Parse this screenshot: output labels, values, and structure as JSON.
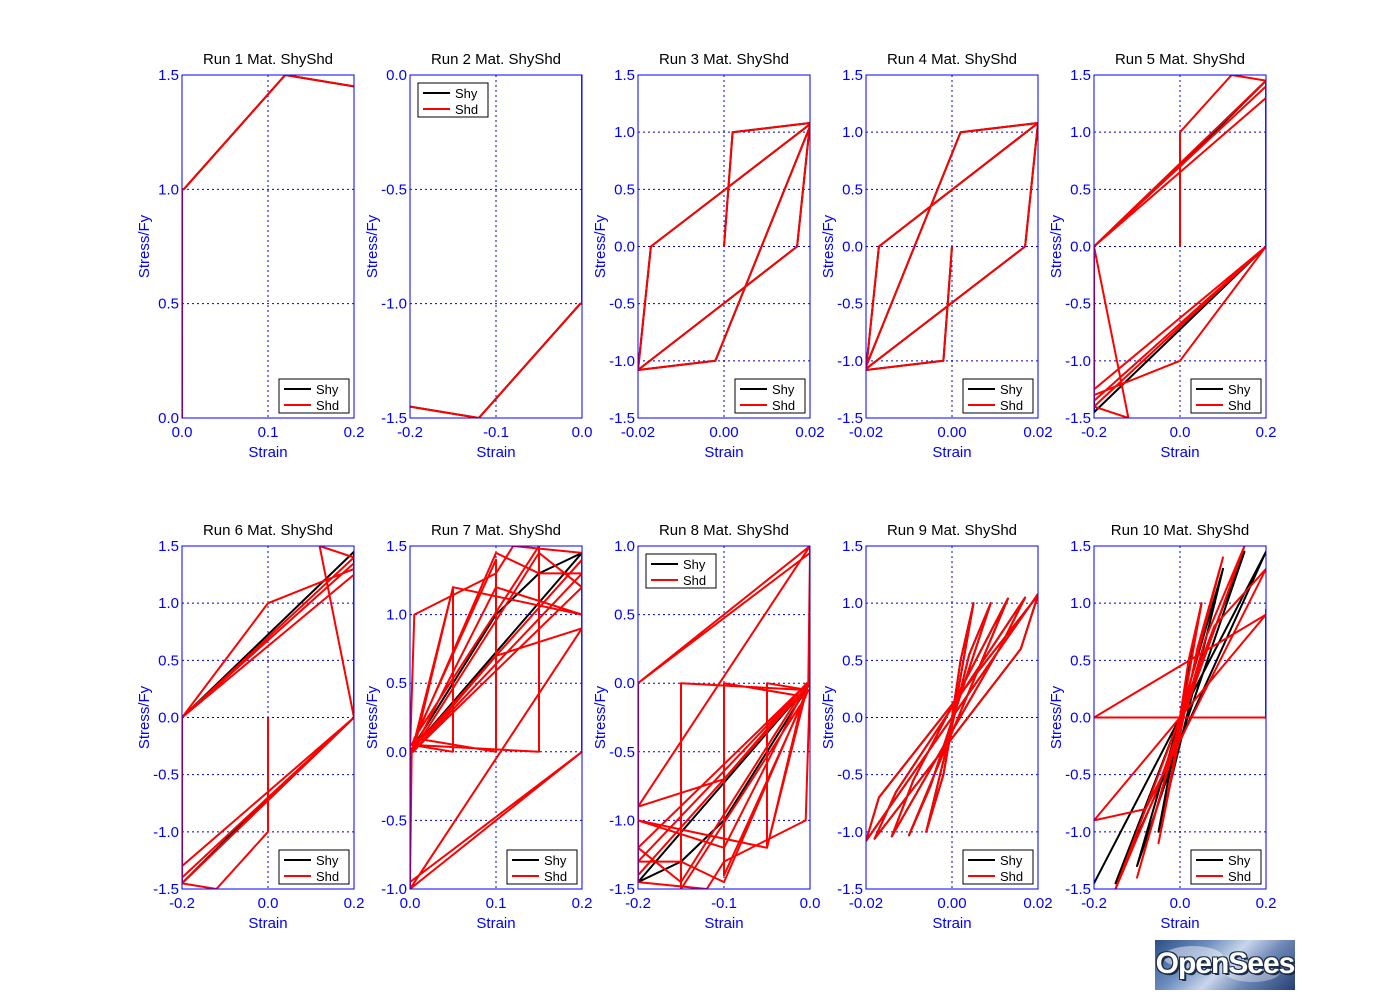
{
  "colors": {
    "axis": "#0000ff",
    "title": "#000000",
    "grid": "#0000cc",
    "shy": "#000000",
    "shd": "#ff0000"
  },
  "logo": {
    "text": "OpenSees"
  },
  "chart_data": [
    {
      "type": "line",
      "title": "Run 1   Mat. ShyShd",
      "xlabel": "Strain",
      "ylabel": "Stress/Fy",
      "xlim": [
        0,
        0.2
      ],
      "ylim": [
        0,
        1.5
      ],
      "xticks": [
        "0.0",
        "0.1",
        "0.2"
      ],
      "yticks": [
        "0.0",
        "0.5",
        "1.0",
        "1.5"
      ],
      "grid": true,
      "legend": {
        "position": "bottom-right",
        "entries": [
          "Shy",
          "Shd"
        ]
      },
      "series": [
        {
          "name": "Shy",
          "x": [
            0,
            0,
            0.002,
            0.12,
            0.2
          ],
          "y": [
            0,
            1.0,
            1.0,
            1.5,
            1.45
          ]
        },
        {
          "name": "Shd",
          "x": [
            0,
            0,
            0.002,
            0.12,
            0.2
          ],
          "y": [
            0,
            1.0,
            1.0,
            1.5,
            1.45
          ]
        }
      ]
    },
    {
      "type": "line",
      "title": "Run 2   Mat. ShyShd",
      "xlabel": "Strain",
      "ylabel": "Stress/Fy",
      "xlim": [
        -0.2,
        0
      ],
      "ylim": [
        -1.5,
        0
      ],
      "xticks": [
        "-0.2",
        "-0.1",
        "0.0"
      ],
      "yticks": [
        "-1.5",
        "-1.0",
        "-0.5",
        "0.0"
      ],
      "grid": true,
      "legend": {
        "position": "top-left",
        "entries": [
          "Shy",
          "Shd"
        ]
      },
      "series": [
        {
          "name": "Shy",
          "x": [
            0,
            0,
            -0.002,
            -0.12,
            -0.2
          ],
          "y": [
            0,
            -1.0,
            -1.0,
            -1.5,
            -1.45
          ]
        },
        {
          "name": "Shd",
          "x": [
            0,
            0,
            -0.002,
            -0.12,
            -0.2
          ],
          "y": [
            0,
            -1.0,
            -1.0,
            -1.5,
            -1.45
          ]
        }
      ]
    },
    {
      "type": "line",
      "title": "Run 3   Mat. ShyShd",
      "xlabel": "Strain",
      "ylabel": "Stress/Fy",
      "xlim": [
        -0.02,
        0.02
      ],
      "ylim": [
        -1.5,
        1.5
      ],
      "xticks": [
        "-0.02",
        "0.00",
        "0.02"
      ],
      "yticks": [
        "-1.5",
        "-1.0",
        "-0.5",
        "0.0",
        "0.5",
        "1.0",
        "1.5"
      ],
      "grid": true,
      "legend": {
        "position": "bottom-right",
        "entries": [
          "Shy",
          "Shd"
        ]
      },
      "series": [
        {
          "name": "Shy",
          "x": [
            0,
            0.002,
            0.02,
            0.017,
            -0.02,
            -0.017,
            0.02,
            0.02,
            -0.002,
            -0.02
          ],
          "y": [
            0,
            1.0,
            1.08,
            0,
            -1.08,
            0,
            1.07,
            1.05,
            -1.0,
            -1.08
          ]
        },
        {
          "name": "Shd",
          "x": [
            0,
            0.002,
            0.02,
            0.017,
            -0.02,
            -0.017,
            0.02,
            0.02,
            -0.002,
            -0.02
          ],
          "y": [
            0,
            1.0,
            1.08,
            0,
            -1.08,
            0,
            1.07,
            1.05,
            -1.0,
            -1.08
          ]
        }
      ]
    },
    {
      "type": "line",
      "title": "Run 4   Mat. ShyShd",
      "xlabel": "Strain",
      "ylabel": "Stress/Fy",
      "xlim": [
        -0.02,
        0.02
      ],
      "ylim": [
        -1.5,
        1.5
      ],
      "xticks": [
        "-0.02",
        "0.00",
        "0.02"
      ],
      "yticks": [
        "-1.5",
        "-1.0",
        "-0.5",
        "0.0",
        "0.5",
        "1.0",
        "1.5"
      ],
      "grid": true,
      "legend": {
        "position": "bottom-right",
        "entries": [
          "Shy",
          "Shd"
        ]
      },
      "series": [
        {
          "name": "Shy",
          "x": [
            0,
            -0.002,
            -0.02,
            -0.017,
            0.02,
            0.017,
            -0.02,
            -0.02,
            0.002,
            0.02
          ],
          "y": [
            0,
            -1.0,
            -1.08,
            0,
            1.08,
            0,
            -1.07,
            -1.05,
            1.0,
            1.08
          ]
        },
        {
          "name": "Shd",
          "x": [
            0,
            -0.002,
            -0.02,
            -0.017,
            0.02,
            0.017,
            -0.02,
            -0.02,
            0.002,
            0.02
          ],
          "y": [
            0,
            -1.0,
            -1.08,
            0,
            1.08,
            0,
            -1.07,
            -1.05,
            1.0,
            1.08
          ]
        }
      ]
    },
    {
      "type": "line",
      "title": "Run 5   Mat. ShyShd",
      "xlabel": "Strain",
      "ylabel": "Stress/Fy",
      "xlim": [
        -0.2,
        0.2
      ],
      "ylim": [
        -1.5,
        1.5
      ],
      "xticks": [
        "-0.2",
        "0.0",
        "0.2"
      ],
      "yticks": [
        "-1.5",
        "-1.0",
        "-0.5",
        "0.0",
        "0.5",
        "1.0",
        "1.5"
      ],
      "grid": true,
      "legend": {
        "position": "bottom-right",
        "entries": [
          "Shy",
          "Shd"
        ]
      },
      "series": [
        {
          "name": "Shy",
          "x": [
            0,
            0,
            0.2,
            0.2,
            -0.2,
            -0.2,
            0.2,
            0.2,
            -0.2
          ],
          "y": [
            0,
            0.7,
            1.45,
            0,
            -1.45,
            0,
            1.45,
            0,
            -1.45
          ]
        },
        {
          "name": "Shd",
          "x": [
            0,
            0,
            0.12,
            0.2,
            0.2,
            0,
            -0.2,
            -0.2,
            0.2,
            0.2,
            -0.2,
            -0.2,
            0.2,
            0.2,
            -0.2,
            -0.2,
            -0.12,
            -0.2,
            0,
            0.2,
            0.2,
            -0.2
          ],
          "y": [
            0,
            1.0,
            1.5,
            1.45,
            0,
            -1.0,
            -1.3,
            0,
            1.4,
            0,
            -1.35,
            0,
            1.3,
            0,
            -1.25,
            0,
            -1.5,
            -1.4,
            -0.7,
            0,
            1.45,
            0
          ]
        }
      ]
    },
    {
      "type": "line",
      "title": "Run 6   Mat. ShyShd",
      "xlabel": "Strain",
      "ylabel": "Stress/Fy",
      "xlim": [
        -0.2,
        0.2
      ],
      "ylim": [
        -1.5,
        1.5
      ],
      "xticks": [
        "-0.2",
        "0.0",
        "0.2"
      ],
      "yticks": [
        "-1.5",
        "-1.0",
        "-0.5",
        "0.0",
        "0.5",
        "1.0",
        "1.5"
      ],
      "grid": true,
      "legend": {
        "position": "bottom-right",
        "entries": [
          "Shy",
          "Shd"
        ]
      },
      "series": [
        {
          "name": "Shy",
          "x": [
            0,
            0,
            -0.2,
            -0.2,
            0.2,
            0.2,
            -0.2,
            -0.2,
            0.2
          ],
          "y": [
            0,
            -0.7,
            -1.45,
            0,
            1.45,
            0,
            -1.45,
            0,
            1.45
          ]
        },
        {
          "name": "Shd",
          "x": [
            0,
            0,
            -0.12,
            -0.2,
            -0.2,
            0,
            0.2,
            0.2,
            -0.2,
            -0.2,
            0.2,
            0.2,
            -0.2,
            -0.2,
            0.2,
            0.2,
            0.12,
            0.2,
            0,
            -0.2,
            -0.2,
            0.2
          ],
          "y": [
            0,
            -1.0,
            -1.5,
            -1.45,
            0,
            1.0,
            1.3,
            0,
            -1.4,
            0,
            1.35,
            0,
            -1.3,
            0,
            1.25,
            0,
            1.5,
            1.4,
            0.7,
            0,
            -1.45,
            0
          ]
        }
      ]
    },
    {
      "type": "line",
      "title": "Run 7   Mat. ShyShd",
      "xlabel": "Strain",
      "ylabel": "Stress/Fy",
      "xlim": [
        0,
        0.2
      ],
      "ylim": [
        -1.0,
        1.5
      ],
      "xticks": [
        "0.0",
        "0.1",
        "0.2"
      ],
      "yticks": [
        "-1.0",
        "-0.5",
        "0.0",
        "0.5",
        "1.0",
        "1.5"
      ],
      "grid": true,
      "legend": {
        "position": "bottom-right",
        "entries": [
          "Shy",
          "Shd"
        ]
      },
      "series": [
        {
          "name": "Shy",
          "x": [
            0,
            0.1,
            0.15,
            0.2,
            0,
            0.1,
            0.15,
            0.2,
            0
          ],
          "y": [
            0,
            1.0,
            1.3,
            1.45,
            0,
            1.0,
            1.3,
            1.45,
            0
          ]
        },
        {
          "name": "Shd",
          "x": [
            0,
            0.005,
            0.1,
            0.12,
            0.2,
            0.2,
            0,
            0,
            0.2,
            0.2,
            0,
            0.002,
            0.05,
            0.05,
            0.002,
            0.1,
            0.1,
            0.005,
            0.15,
            0.15,
            0.003,
            0.1,
            0.15,
            0.2,
            0.003,
            0.2,
            0.15,
            0.003,
            0.1,
            0.2,
            0.05,
            0.004,
            0.1,
            0.2,
            0
          ],
          "y": [
            0,
            1.0,
            1.3,
            1.5,
            1.45,
            0,
            -1.0,
            0,
            1.4,
            0,
            -0.95,
            0,
            1.2,
            0,
            0.05,
            1.4,
            0,
            0.1,
            1.5,
            0,
            0.05,
            1.45,
            1.3,
            1.3,
            0,
            1.2,
            1.45,
            0,
            1.2,
            1.0,
            1.2,
            0,
            0.7,
            0.9,
            -1.0
          ]
        }
      ]
    },
    {
      "type": "line",
      "title": "Run 8   Mat. ShyShd",
      "xlabel": "Strain",
      "ylabel": "Stress/Fy",
      "xlim": [
        -0.2,
        0
      ],
      "ylim": [
        -1.5,
        1.0
      ],
      "xticks": [
        "-0.2",
        "-0.1",
        "0.0"
      ],
      "yticks": [
        "-1.5",
        "-1.0",
        "-0.5",
        "0.0",
        "0.5",
        "1.0"
      ],
      "grid": true,
      "legend": {
        "position": "top-left",
        "entries": [
          "Shy",
          "Shd"
        ]
      },
      "series": [
        {
          "name": "Shy",
          "x": [
            0,
            -0.1,
            -0.15,
            -0.2,
            0,
            -0.1,
            -0.15,
            -0.2,
            0
          ],
          "y": [
            0,
            -1.0,
            -1.3,
            -1.45,
            0,
            -1.0,
            -1.3,
            -1.45,
            0
          ]
        },
        {
          "name": "Shd",
          "x": [
            0,
            -0.005,
            -0.1,
            -0.12,
            -0.2,
            -0.2,
            0,
            0,
            -0.2,
            -0.2,
            0,
            -0.002,
            -0.05,
            -0.05,
            -0.002,
            -0.1,
            -0.1,
            -0.005,
            -0.15,
            -0.15,
            -0.003,
            -0.1,
            -0.15,
            -0.2,
            -0.003,
            -0.2,
            -0.15,
            -0.003,
            -0.1,
            -0.2,
            -0.05,
            -0.004,
            -0.1,
            -0.2,
            0
          ],
          "y": [
            0,
            -1.0,
            -1.3,
            -1.5,
            -1.45,
            0,
            1.0,
            0,
            -1.4,
            0,
            0.95,
            0,
            -1.2,
            0,
            -0.05,
            -1.4,
            0,
            -0.1,
            -1.5,
            0,
            -0.05,
            -1.45,
            -1.3,
            -1.3,
            0,
            -1.2,
            -1.45,
            0,
            -1.2,
            -1.0,
            -1.2,
            0,
            -0.7,
            -0.9,
            1.0
          ]
        }
      ]
    },
    {
      "type": "line",
      "title": "Run 9   Mat. ShyShd",
      "xlabel": "Strain",
      "ylabel": "Stress/Fy",
      "xlim": [
        -0.02,
        0.02
      ],
      "ylim": [
        -1.5,
        1.5
      ],
      "xticks": [
        "-0.02",
        "0.00",
        "0.02"
      ],
      "yticks": [
        "-1.5",
        "-1.0",
        "-0.5",
        "0.0",
        "0.5",
        "1.0",
        "1.5"
      ],
      "grid": true,
      "legend": {
        "position": "bottom-right",
        "entries": [
          "Shy",
          "Shd"
        ]
      },
      "series": [
        {
          "name": "Shy",
          "x": [
            0,
            0.002,
            0.005,
            -0.002,
            -0.006,
            0.004,
            0.009,
            -0.005,
            -0.01,
            0.007,
            0.013,
            -0.009,
            -0.014,
            0.011,
            0.017,
            -0.013,
            -0.018,
            0.016,
            0.02,
            -0.017,
            -0.02,
            0.02
          ],
          "y": [
            0,
            0.5,
            1.0,
            -0.5,
            -1.0,
            0.55,
            1.0,
            -0.6,
            -1.03,
            0.5,
            1.04,
            -0.55,
            -1.04,
            0.6,
            1.05,
            -0.65,
            -1.06,
            0.6,
            1.07,
            -0.7,
            -1.08,
            1.08
          ]
        },
        {
          "name": "Shd",
          "x": [
            0,
            0.002,
            0.005,
            -0.002,
            -0.006,
            0.004,
            0.009,
            -0.005,
            -0.01,
            0.007,
            0.013,
            -0.009,
            -0.014,
            0.011,
            0.017,
            -0.013,
            -0.018,
            0.016,
            0.02,
            -0.017,
            -0.02,
            0.02
          ],
          "y": [
            0,
            0.5,
            1.0,
            -0.5,
            -1.0,
            0.55,
            1.0,
            -0.6,
            -1.03,
            0.5,
            1.04,
            -0.55,
            -1.04,
            0.6,
            1.05,
            -0.65,
            -1.06,
            0.6,
            1.07,
            -0.7,
            -1.08,
            1.08
          ]
        }
      ]
    },
    {
      "type": "line",
      "title": "Run 10   Mat. ShyShd",
      "xlabel": "Strain",
      "ylabel": "Stress/Fy",
      "xlim": [
        -0.2,
        0.2
      ],
      "ylim": [
        -1.5,
        1.5
      ],
      "xticks": [
        "-0.2",
        "0.0",
        "0.2"
      ],
      "yticks": [
        "-1.5",
        "-1.0",
        "-0.5",
        "0.0",
        "0.5",
        "1.0",
        "1.5"
      ],
      "grid": true,
      "legend": {
        "position": "bottom-right",
        "entries": [
          "Shy",
          "Shd"
        ]
      },
      "series": [
        {
          "name": "Shy",
          "x": [
            0,
            0.05,
            -0.05,
            0.1,
            -0.1,
            0.15,
            -0.15,
            0.2,
            -0.2,
            0.2
          ],
          "y": [
            0,
            1.0,
            -1.0,
            1.3,
            -1.3,
            1.45,
            -1.45,
            1.45,
            -1.45,
            1.45
          ]
        },
        {
          "name": "Shd",
          "x": [
            0,
            0.02,
            0.05,
            -0.02,
            -0.05,
            0.04,
            0.1,
            -0.04,
            -0.1,
            0.06,
            0.15,
            -0.06,
            -0.15,
            0.08,
            0.2,
            -0.08,
            -0.2,
            0.2,
            -0.2,
            0.2,
            0.2
          ],
          "y": [
            0,
            0.5,
            1.0,
            -0.5,
            -1.1,
            0.6,
            1.4,
            -0.6,
            -1.4,
            0.7,
            1.5,
            -0.7,
            -1.5,
            0.8,
            1.3,
            -0.8,
            -0.9,
            0.9,
            0,
            0,
            0.95
          ]
        }
      ]
    }
  ]
}
